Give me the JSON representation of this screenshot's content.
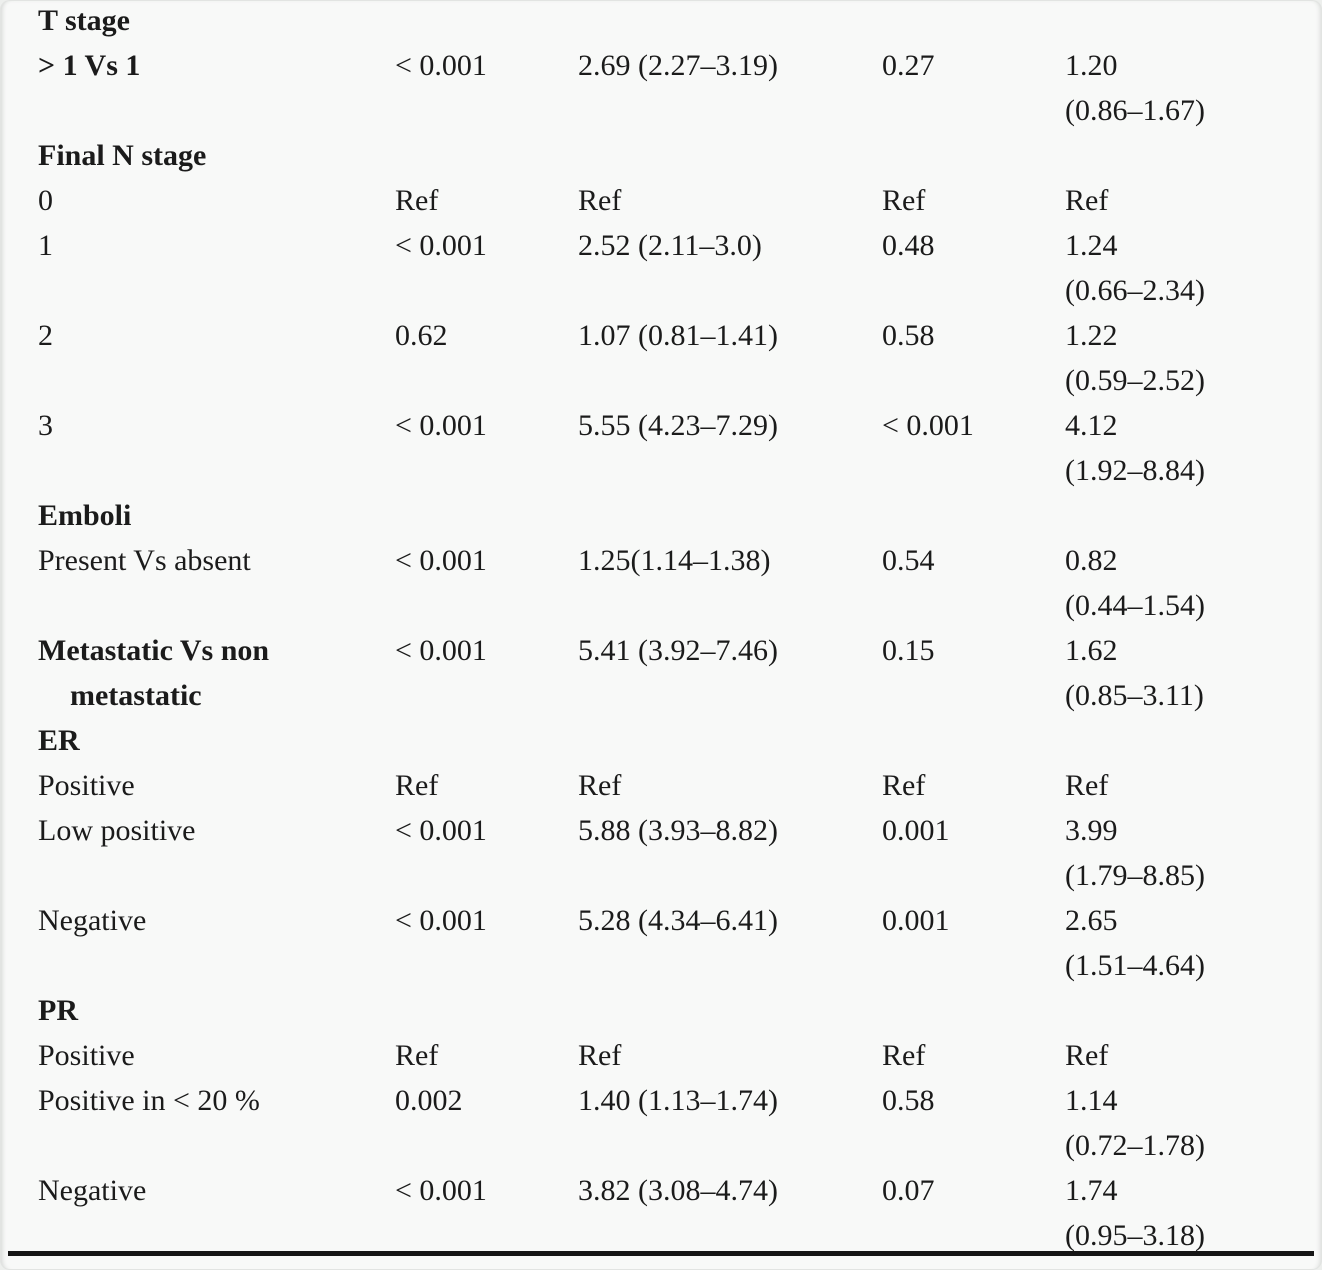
{
  "page": {
    "background_color": "#f8f9f8",
    "text_color": "#1b1b1b",
    "rule_color": "#151515"
  },
  "table": {
    "rows": [
      {
        "kind": "section",
        "label": "T stage"
      },
      {
        "kind": "data",
        "label": "> 1 Vs 1",
        "p_univariable": "< 0.001",
        "estimate_univariable": "2.69 (2.27–3.19)",
        "p_multivariable": "0.27",
        "estimate_multivariable": "1.20\n(0.86–1.67)"
      },
      {
        "kind": "section",
        "label": "Final N stage"
      },
      {
        "kind": "data",
        "label": "0",
        "p_univariable": "Ref",
        "estimate_univariable": "Ref",
        "p_multivariable": "Ref",
        "estimate_multivariable": "Ref"
      },
      {
        "kind": "data",
        "label": "1",
        "p_univariable": "< 0.001",
        "estimate_univariable": "2.52 (2.11–3.0)",
        "p_multivariable": "0.48",
        "estimate_multivariable": "1.24\n(0.66–2.34)"
      },
      {
        "kind": "data",
        "label": "2",
        "p_univariable": "0.62",
        "estimate_univariable": "1.07 (0.81–1.41)",
        "p_multivariable": "0.58",
        "estimate_multivariable": "1.22\n(0.59–2.52)"
      },
      {
        "kind": "data",
        "label": "3",
        "p_univariable": "< 0.001",
        "estimate_univariable": "5.55 (4.23–7.29)",
        "p_multivariable": "< 0.001",
        "estimate_multivariable": "4.12\n(1.92–8.84)"
      },
      {
        "kind": "section",
        "label": "Emboli"
      },
      {
        "kind": "data",
        "label": "Present Vs absent",
        "p_univariable": "< 0.001",
        "estimate_univariable": "1.25(1.14–1.38)",
        "p_multivariable": "0.54",
        "estimate_multivariable": "0.82\n(0.44–1.54)"
      },
      {
        "kind": "data",
        "label": "Metastatic Vs non metastatic",
        "p_univariable": "< 0.001",
        "estimate_univariable": "5.41 (3.92–7.46)",
        "p_multivariable": "0.15",
        "estimate_multivariable": "1.62\n(0.85–3.11)"
      },
      {
        "kind": "section",
        "label": "ER"
      },
      {
        "kind": "data",
        "label": "Positive",
        "p_univariable": "Ref",
        "estimate_univariable": "Ref",
        "p_multivariable": "Ref",
        "estimate_multivariable": "Ref"
      },
      {
        "kind": "data",
        "label": "Low positive",
        "p_univariable": "< 0.001",
        "estimate_univariable": "5.88 (3.93–8.82)",
        "p_multivariable": "0.001",
        "estimate_multivariable": "3.99\n(1.79–8.85)"
      },
      {
        "kind": "data",
        "label": "Negative",
        "p_univariable": "< 0.001",
        "estimate_univariable": "5.28 (4.34–6.41)",
        "p_multivariable": "0.001",
        "estimate_multivariable": "2.65\n(1.51–4.64)"
      },
      {
        "kind": "section",
        "label": "PR"
      },
      {
        "kind": "data",
        "label": "Positive",
        "p_univariable": "Ref",
        "estimate_univariable": "Ref",
        "p_multivariable": "Ref",
        "estimate_multivariable": "Ref"
      },
      {
        "kind": "data",
        "label": "Positive in < 20 %",
        "p_univariable": "0.002",
        "estimate_univariable": "1.40 (1.13–1.74)",
        "p_multivariable": "0.58",
        "estimate_multivariable": "1.14\n(0.72–1.78)"
      },
      {
        "kind": "data",
        "label": "Negative",
        "p_univariable": "< 0.001",
        "estimate_univariable": "3.82 (3.08–4.74)",
        "p_multivariable": "0.07",
        "estimate_multivariable": "1.74\n(0.95–3.18)"
      }
    ]
  }
}
